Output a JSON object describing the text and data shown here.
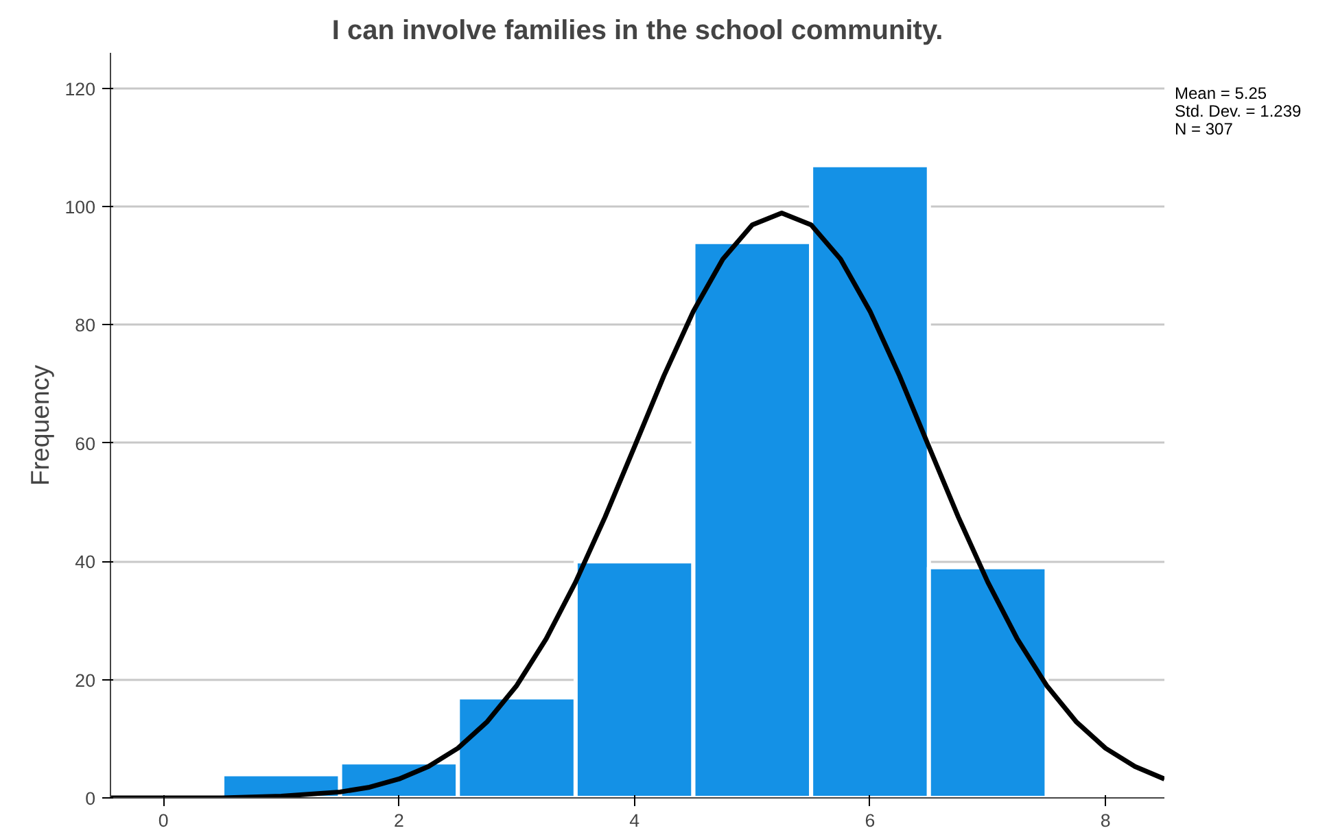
{
  "chart_data": {
    "type": "histogram",
    "title": "I can involve families in the school community.",
    "ylabel": "Frequency",
    "series": [
      {
        "bins": [
          0.5,
          1.5,
          2.5,
          3.5,
          4.5,
          5.5,
          6.5,
          7.5
        ],
        "values": [
          4,
          6,
          17,
          40,
          94,
          107,
          39
        ],
        "color": "#1491e6"
      },
      {
        "type": "line",
        "color": "#000000",
        "x": [
          -0.45,
          0,
          0.5,
          1,
          1.5,
          1.75,
          2,
          2.25,
          2.5,
          2.75,
          3,
          3.25,
          3.5,
          3.75,
          4,
          4.25,
          4.5,
          4.75,
          5,
          5.25,
          5.5,
          5.75,
          6,
          6.25,
          6.5,
          6.75,
          7,
          7.25,
          7.5,
          7.75,
          8,
          8.25,
          8.5
        ],
        "values": [
          0,
          0,
          0,
          0.3,
          1.0,
          1.8,
          3.2,
          5.3,
          8.4,
          12.9,
          19.0,
          26.9,
          36.5,
          47.5,
          59.4,
          71.4,
          82.3,
          91.1,
          96.9,
          98.9,
          96.9,
          91.1,
          82.3,
          71.4,
          59.4,
          47.5,
          36.5,
          26.9,
          19.0,
          12.9,
          8.4,
          5.3,
          3.2
        ]
      }
    ],
    "annotations": [
      "Mean = 5.25",
      "Std. Dev. = 1.239",
      "N = 307"
    ],
    "xlim": [
      -0.45,
      8.5
    ],
    "ylim": [
      0,
      126
    ],
    "xticks": [
      0,
      2,
      4,
      6,
      8
    ],
    "yticks": [
      0,
      20,
      40,
      60,
      80,
      100,
      120
    ],
    "grid": "y"
  }
}
